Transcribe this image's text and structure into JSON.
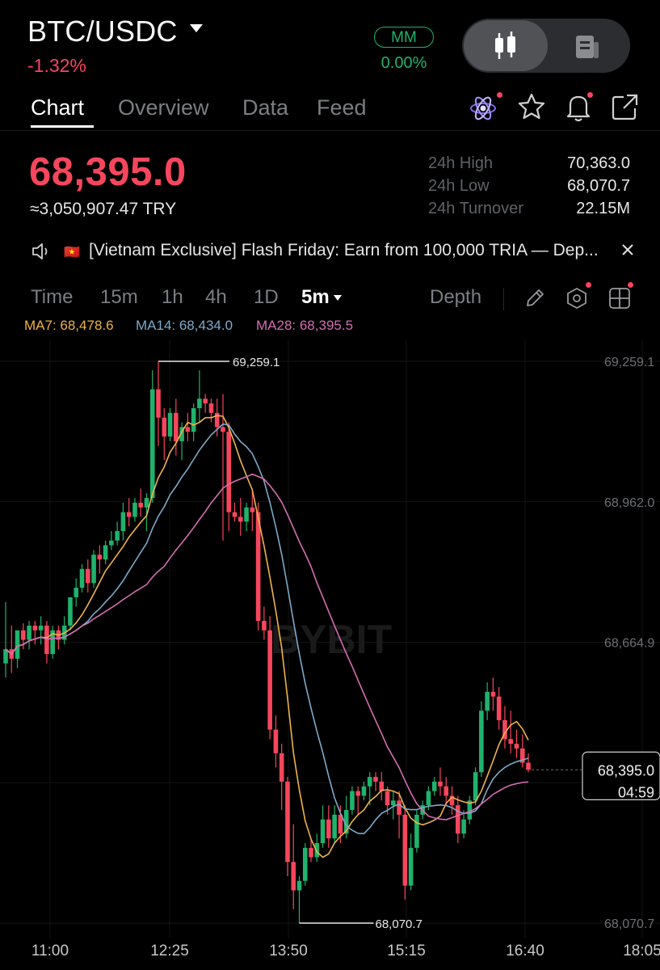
{
  "header": {
    "pair": "BTC/USDC",
    "change": "-1.32%",
    "mm_label": "MM",
    "mm_value": "0.00%"
  },
  "tabs": [
    "Chart",
    "Overview",
    "Data",
    "Feed"
  ],
  "active_tab": "Chart",
  "ticker": {
    "last_price": "68,395.0",
    "fiat_equiv": "≈3,050,907.47 TRY",
    "stats": [
      {
        "label": "24h High",
        "value": "70,363.0"
      },
      {
        "label": "24h Low",
        "value": "68,070.7"
      },
      {
        "label": "24h Turnover",
        "value": "22.15M"
      }
    ]
  },
  "announcement": {
    "flag": "🇻🇳",
    "text": "[Vietnam Exclusive] Flash Friday: Earn from 100,000 TRIA — Dep..."
  },
  "timeframes": [
    "Time",
    "15m",
    "1h",
    "4h",
    "1D",
    "5m"
  ],
  "active_timeframe": "5m",
  "depth_label": "Depth",
  "indicators": {
    "ma7": "MA7: 68,478.6",
    "ma14": "MA14: 68,434.0",
    "ma28": "MA28: 68,395.5"
  },
  "colors": {
    "up": "#20b26c",
    "down": "#f6465d",
    "ma7": "#f0b34a",
    "ma14": "#7eaac9",
    "ma28": "#d36fb1"
  },
  "watermark": "BYBIT",
  "chart_data": {
    "type": "candlestick",
    "interval": "5m",
    "y_ticks": [
      "69,259.1",
      "68,962.0",
      "68,664.9",
      "68,070.7"
    ],
    "x_ticks": [
      "11:00",
      "12:25",
      "13:50",
      "15:15",
      "16:40",
      "18:05"
    ],
    "high_marker": "69,259.1",
    "low_marker": "68,070.7",
    "last_price": "68,395.0",
    "countdown": "04:59",
    "ylim": [
      68070.7,
      69259.1
    ],
    "candles": [
      {
        "o": 68620,
        "h": 68750,
        "c": 68650,
        "l": 68590
      },
      {
        "o": 68650,
        "h": 68700,
        "c": 68630,
        "l": 68600
      },
      {
        "o": 68630,
        "h": 68680,
        "c": 68690,
        "l": 68610
      },
      {
        "o": 68690,
        "h": 68705,
        "c": 68670,
        "l": 68650
      },
      {
        "o": 68670,
        "h": 68710,
        "c": 68700,
        "l": 68650
      },
      {
        "o": 68700,
        "h": 68710,
        "c": 68690,
        "l": 68660
      },
      {
        "o": 68690,
        "h": 68720,
        "c": 68700,
        "l": 68660
      },
      {
        "o": 68700,
        "h": 68710,
        "c": 68640,
        "l": 68620
      },
      {
        "o": 68640,
        "h": 68700,
        "c": 68690,
        "l": 68630
      },
      {
        "o": 68690,
        "h": 68700,
        "c": 68670,
        "l": 68650
      },
      {
        "o": 68670,
        "h": 68720,
        "c": 68700,
        "l": 68660
      },
      {
        "o": 68700,
        "h": 68760,
        "c": 68760,
        "l": 68690
      },
      {
        "o": 68760,
        "h": 68800,
        "c": 68780,
        "l": 68740
      },
      {
        "o": 68780,
        "h": 68830,
        "c": 68820,
        "l": 68770
      },
      {
        "o": 68820,
        "h": 68840,
        "c": 68790,
        "l": 68770
      },
      {
        "o": 68790,
        "h": 68860,
        "c": 68850,
        "l": 68780
      },
      {
        "o": 68850,
        "h": 68870,
        "c": 68840,
        "l": 68810
      },
      {
        "o": 68840,
        "h": 68880,
        "c": 68870,
        "l": 68830
      },
      {
        "o": 68870,
        "h": 68900,
        "c": 68880,
        "l": 68860
      },
      {
        "o": 68880,
        "h": 68920,
        "c": 68900,
        "l": 68870
      },
      {
        "o": 68900,
        "h": 68960,
        "c": 68940,
        "l": 68880
      },
      {
        "o": 68940,
        "h": 68970,
        "c": 68930,
        "l": 68910
      },
      {
        "o": 68930,
        "h": 68970,
        "c": 68960,
        "l": 68920
      },
      {
        "o": 68960,
        "h": 68990,
        "c": 68950,
        "l": 68930
      },
      {
        "o": 68950,
        "h": 68980,
        "c": 68970,
        "l": 68900
      },
      {
        "o": 68970,
        "h": 69240,
        "c": 69200,
        "l": 68960
      },
      {
        "o": 69200,
        "h": 69259,
        "c": 69140,
        "l": 69080
      },
      {
        "o": 69140,
        "h": 69160,
        "c": 69100,
        "l": 69050
      },
      {
        "o": 69100,
        "h": 69160,
        "c": 69150,
        "l": 69090
      },
      {
        "o": 69150,
        "h": 69180,
        "c": 69090,
        "l": 69060
      },
      {
        "o": 69090,
        "h": 69130,
        "c": 69120,
        "l": 69050
      },
      {
        "o": 69120,
        "h": 69150,
        "c": 69110,
        "l": 69090
      },
      {
        "o": 69110,
        "h": 69170,
        "c": 69160,
        "l": 69090
      },
      {
        "o": 69160,
        "h": 69240,
        "c": 69180,
        "l": 69130
      },
      {
        "o": 69180,
        "h": 69190,
        "c": 69170,
        "l": 69150
      },
      {
        "o": 69170,
        "h": 69180,
        "c": 69150,
        "l": 69130
      },
      {
        "o": 69150,
        "h": 69180,
        "c": 69120,
        "l": 69100
      },
      {
        "o": 69120,
        "h": 69190,
        "c": 69110,
        "l": 68880
      },
      {
        "o": 69110,
        "h": 69130,
        "c": 68940,
        "l": 68900
      },
      {
        "o": 68940,
        "h": 68960,
        "c": 68930,
        "l": 68920
      },
      {
        "o": 68930,
        "h": 68970,
        "c": 68920,
        "l": 68890
      },
      {
        "o": 68920,
        "h": 68960,
        "c": 68950,
        "l": 68900
      },
      {
        "o": 68950,
        "h": 68990,
        "c": 68940,
        "l": 68900
      },
      {
        "o": 68940,
        "h": 68960,
        "c": 68710,
        "l": 68690
      },
      {
        "o": 68710,
        "h": 68740,
        "c": 68690,
        "l": 68670
      },
      {
        "o": 68690,
        "h": 68720,
        "c": 68480,
        "l": 68460
      },
      {
        "o": 68480,
        "h": 68510,
        "c": 68430,
        "l": 68400
      },
      {
        "o": 68430,
        "h": 68450,
        "c": 68370,
        "l": 68310
      },
      {
        "o": 68370,
        "h": 68380,
        "c": 68200,
        "l": 68170
      },
      {
        "o": 68200,
        "h": 68280,
        "c": 68140,
        "l": 68100
      },
      {
        "o": 68140,
        "h": 68170,
        "c": 68160,
        "l": 68071
      },
      {
        "o": 68160,
        "h": 68240,
        "c": 68230,
        "l": 68150
      },
      {
        "o": 68230,
        "h": 68250,
        "c": 68210,
        "l": 68200
      },
      {
        "o": 68210,
        "h": 68260,
        "c": 68240,
        "l": 68200
      },
      {
        "o": 68240,
        "h": 68320,
        "c": 68290,
        "l": 68230
      },
      {
        "o": 68290,
        "h": 68320,
        "c": 68250,
        "l": 68230
      },
      {
        "o": 68250,
        "h": 68320,
        "c": 68300,
        "l": 68240
      },
      {
        "o": 68300,
        "h": 68320,
        "c": 68260,
        "l": 68240
      },
      {
        "o": 68260,
        "h": 68340,
        "c": 68310,
        "l": 68250
      },
      {
        "o": 68310,
        "h": 68360,
        "c": 68350,
        "l": 68300
      },
      {
        "o": 68350,
        "h": 68360,
        "c": 68340,
        "l": 68300
      },
      {
        "o": 68340,
        "h": 68370,
        "c": 68360,
        "l": 68330
      },
      {
        "o": 68360,
        "h": 68390,
        "c": 68380,
        "l": 68320
      },
      {
        "o": 68380,
        "h": 68390,
        "c": 68370,
        "l": 68350
      },
      {
        "o": 68370,
        "h": 68390,
        "c": 68350,
        "l": 68330
      },
      {
        "o": 68350,
        "h": 68360,
        "c": 68320,
        "l": 68300
      },
      {
        "o": 68320,
        "h": 68350,
        "c": 68330,
        "l": 68290
      },
      {
        "o": 68330,
        "h": 68350,
        "c": 68300,
        "l": 68250
      },
      {
        "o": 68300,
        "h": 68320,
        "c": 68150,
        "l": 68120
      },
      {
        "o": 68150,
        "h": 68260,
        "c": 68230,
        "l": 68140
      },
      {
        "o": 68230,
        "h": 68310,
        "c": 68300,
        "l": 68220
      },
      {
        "o": 68300,
        "h": 68330,
        "c": 68320,
        "l": 68290
      },
      {
        "o": 68320,
        "h": 68360,
        "c": 68350,
        "l": 68310
      },
      {
        "o": 68350,
        "h": 68380,
        "c": 68370,
        "l": 68340
      },
      {
        "o": 68370,
        "h": 68400,
        "c": 68360,
        "l": 68340
      },
      {
        "o": 68360,
        "h": 68380,
        "c": 68340,
        "l": 68320
      },
      {
        "o": 68340,
        "h": 68360,
        "c": 68320,
        "l": 68300
      },
      {
        "o": 68320,
        "h": 68340,
        "c": 68260,
        "l": 68240
      },
      {
        "o": 68260,
        "h": 68310,
        "c": 68290,
        "l": 68250
      },
      {
        "o": 68290,
        "h": 68340,
        "c": 68330,
        "l": 68280
      },
      {
        "o": 68330,
        "h": 68400,
        "c": 68390,
        "l": 68320
      },
      {
        "o": 68390,
        "h": 68540,
        "c": 68520,
        "l": 68380
      },
      {
        "o": 68520,
        "h": 68580,
        "c": 68560,
        "l": 68500
      },
      {
        "o": 68560,
        "h": 68590,
        "c": 68550,
        "l": 68520
      },
      {
        "o": 68550,
        "h": 68570,
        "c": 68500,
        "l": 68480
      },
      {
        "o": 68500,
        "h": 68530,
        "c": 68460,
        "l": 68440
      },
      {
        "o": 68460,
        "h": 68520,
        "c": 68450,
        "l": 68430
      },
      {
        "o": 68450,
        "h": 68480,
        "c": 68440,
        "l": 68420
      },
      {
        "o": 68440,
        "h": 68470,
        "c": 68410,
        "l": 68400
      },
      {
        "o": 68410,
        "h": 68430,
        "c": 68395,
        "l": 68390
      }
    ]
  }
}
